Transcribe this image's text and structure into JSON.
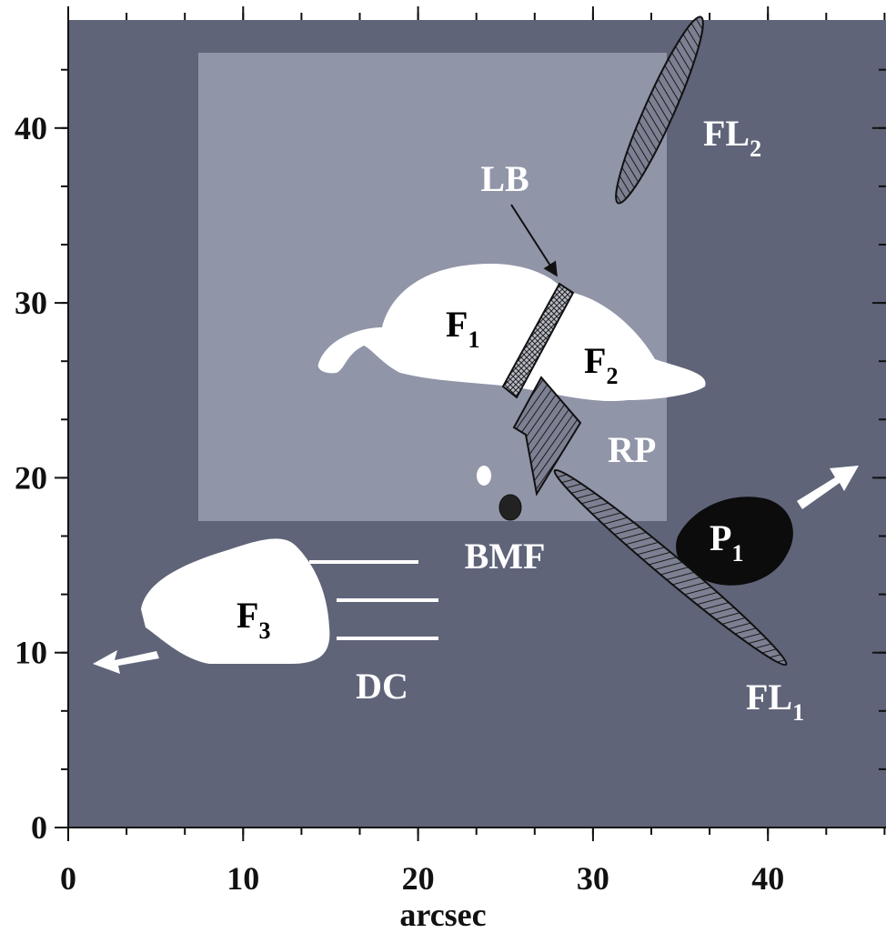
{
  "axes": {
    "xticks": [
      0,
      10,
      20,
      30,
      40
    ],
    "yticks": [
      0,
      10,
      20,
      30,
      40
    ],
    "xlabel": "arcsec"
  },
  "labels": {
    "lb": "LB",
    "fl2": {
      "text": "FL",
      "sub": "2"
    },
    "f1": {
      "text": "F",
      "sub": "1"
    },
    "f2": {
      "text": "F",
      "sub": "2"
    },
    "rp": "RP",
    "bmf": "BMF",
    "p1": {
      "text": "P",
      "sub": "1"
    },
    "f3": {
      "text": "F",
      "sub": "3"
    },
    "dc": "DC",
    "fl1": {
      "text": "FL",
      "sub": "1"
    }
  }
}
